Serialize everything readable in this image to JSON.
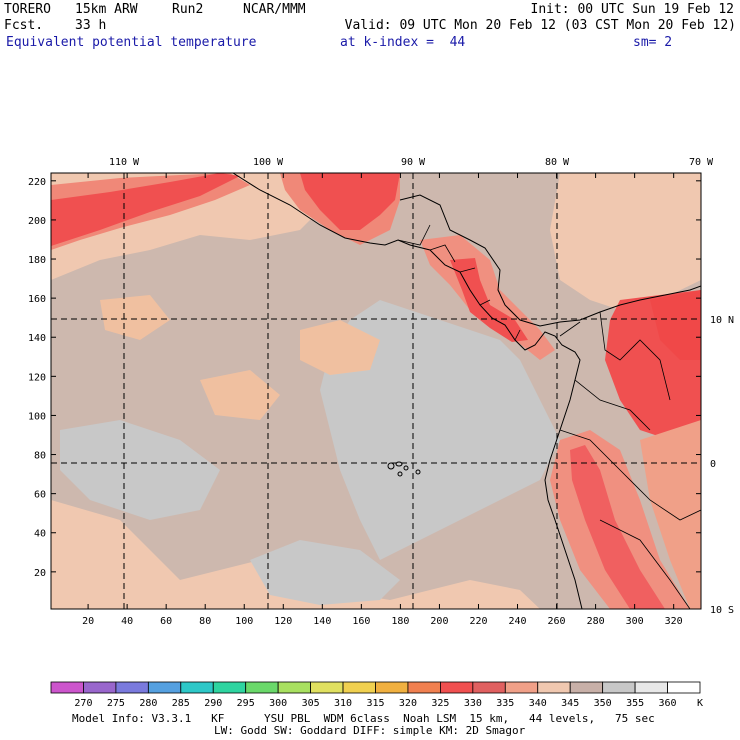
{
  "header": {
    "model": "TORERO",
    "resolution": "15km ARW",
    "run": "Run2",
    "org": "NCAR/MMM",
    "init": "Init: 00 UTC Sun 19 Feb 12",
    "fcst_label": "Fcst.",
    "fcst_value": "33 h",
    "valid": "Valid: 09 UTC Mon 20 Feb 12 (03 CST Mon 20 Feb 12)",
    "field": "Equivalent potential temperature",
    "level": "at k-index =  44",
    "smoothing": "sm= 2"
  },
  "map": {
    "top_lon_labels": [
      "110 W",
      "100 W",
      "90 W",
      "80 W",
      "70 W"
    ],
    "right_lat_labels": [
      "10 N",
      "0",
      "10 S"
    ],
    "left_axis_ticks": [
      "220",
      "200",
      "180",
      "160",
      "140",
      "120",
      "100",
      "80",
      "60",
      "40",
      "20"
    ],
    "bottom_axis_ticks": [
      "20",
      "40",
      "60",
      "80",
      "100",
      "120",
      "140",
      "160",
      "180",
      "200",
      "220",
      "240",
      "260",
      "280",
      "300",
      "320"
    ]
  },
  "colorbar": {
    "unit": "K",
    "labels": [
      "270",
      "275",
      "280",
      "285",
      "290",
      "295",
      "300",
      "305",
      "310",
      "315",
      "320",
      "325",
      "330",
      "335",
      "340",
      "345",
      "350",
      "355",
      "360"
    ],
    "colors": [
      "#cc55cc",
      "#9966cc",
      "#7a7add",
      "#55a0e0",
      "#2ec8c8",
      "#2ed4a0",
      "#6ad86a",
      "#a8e060",
      "#e0e060",
      "#f0d050",
      "#f0b040",
      "#f08050",
      "#f05050",
      "#e06060",
      "#f0a088",
      "#f0c8b0",
      "#c8b0a8",
      "#c8c8c8",
      "#e8e8e8",
      "#ffffff"
    ]
  },
  "footer": {
    "line1": "Model Info: V3.3.1   KF      YSU PBL  WDM 6class  Noah LSM  15 km,   44 levels,   75 sec",
    "line2": "LW: Godd SW: Goddard DIFF: simple KM: 2D Smagor"
  }
}
